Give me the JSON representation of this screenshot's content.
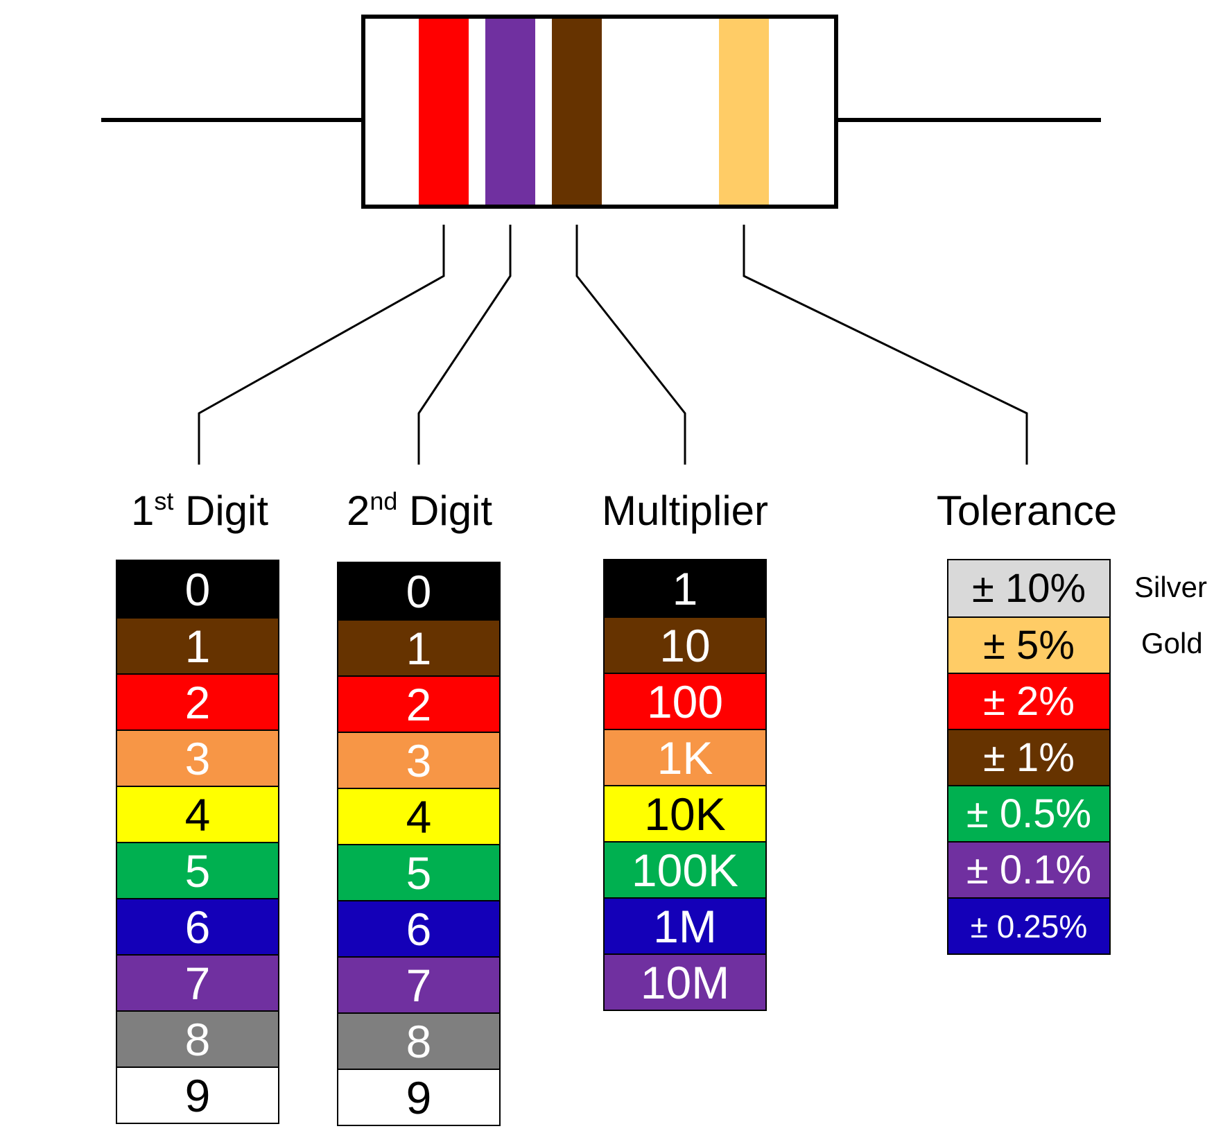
{
  "resistor": {
    "bands": [
      {
        "name": "first-digit-band",
        "color": "#FF0000"
      },
      {
        "name": "second-digit-band",
        "color": "#7030A0"
      },
      {
        "name": "multiplier-band",
        "color": "#663300"
      },
      {
        "name": "tolerance-band",
        "color": "#FFCC66"
      }
    ]
  },
  "columns": {
    "first_digit": {
      "title_main": "1",
      "title_sup": "st",
      "title_rest": " Digit",
      "rows": [
        {
          "label": "0",
          "bg": "#000000",
          "fg": "#FFFFFF"
        },
        {
          "label": "1",
          "bg": "#663300",
          "fg": "#FFFFFF"
        },
        {
          "label": "2",
          "bg": "#FF0000",
          "fg": "#FFFFFF"
        },
        {
          "label": "3",
          "bg": "#F79646",
          "fg": "#FFFFFF"
        },
        {
          "label": "4",
          "bg": "#FFFF00",
          "fg": "#000000"
        },
        {
          "label": "5",
          "bg": "#00B050",
          "fg": "#FFFFFF"
        },
        {
          "label": "6",
          "bg": "#1400B8",
          "fg": "#FFFFFF"
        },
        {
          "label": "7",
          "bg": "#7030A0",
          "fg": "#FFFFFF"
        },
        {
          "label": "8",
          "bg": "#7F7F7F",
          "fg": "#FFFFFF"
        },
        {
          "label": "9",
          "bg": "#FFFFFF",
          "fg": "#000000"
        }
      ]
    },
    "second_digit": {
      "title_main": "2",
      "title_sup": "nd",
      "title_rest": " Digit",
      "rows": [
        {
          "label": "0",
          "bg": "#000000",
          "fg": "#FFFFFF"
        },
        {
          "label": "1",
          "bg": "#663300",
          "fg": "#FFFFFF"
        },
        {
          "label": "2",
          "bg": "#FF0000",
          "fg": "#FFFFFF"
        },
        {
          "label": "3",
          "bg": "#F79646",
          "fg": "#FFFFFF"
        },
        {
          "label": "4",
          "bg": "#FFFF00",
          "fg": "#000000"
        },
        {
          "label": "5",
          "bg": "#00B050",
          "fg": "#FFFFFF"
        },
        {
          "label": "6",
          "bg": "#1400B8",
          "fg": "#FFFFFF"
        },
        {
          "label": "7",
          "bg": "#7030A0",
          "fg": "#FFFFFF"
        },
        {
          "label": "8",
          "bg": "#7F7F7F",
          "fg": "#FFFFFF"
        },
        {
          "label": "9",
          "bg": "#FFFFFF",
          "fg": "#000000"
        }
      ]
    },
    "multiplier": {
      "title": "Multiplier",
      "rows": [
        {
          "label": "1",
          "bg": "#000000",
          "fg": "#FFFFFF"
        },
        {
          "label": "10",
          "bg": "#663300",
          "fg": "#FFFFFF"
        },
        {
          "label": "100",
          "bg": "#FF0000",
          "fg": "#FFFFFF"
        },
        {
          "label": "1K",
          "bg": "#F79646",
          "fg": "#FFFFFF"
        },
        {
          "label": "10K",
          "bg": "#FFFF00",
          "fg": "#000000"
        },
        {
          "label": "100K",
          "bg": "#00B050",
          "fg": "#FFFFFF"
        },
        {
          "label": "1M",
          "bg": "#1400B8",
          "fg": "#FFFFFF"
        },
        {
          "label": "10M",
          "bg": "#7030A0",
          "fg": "#FFFFFF"
        }
      ]
    },
    "tolerance": {
      "title": "Tolerance",
      "rows": [
        {
          "label": "± 10%",
          "bg": "#D9D9D9",
          "fg": "#000000",
          "side": "Silver"
        },
        {
          "label": "± 5%",
          "bg": "#FFCC66",
          "fg": "#000000",
          "side": "Gold"
        },
        {
          "label": "± 2%",
          "bg": "#FF0000",
          "fg": "#FFFFFF"
        },
        {
          "label": "± 1%",
          "bg": "#663300",
          "fg": "#FFFFFF"
        },
        {
          "label": "± 0.5%",
          "bg": "#00B050",
          "fg": "#FFFFFF"
        },
        {
          "label": "± 0.1%",
          "bg": "#7030A0",
          "fg": "#FFFFFF"
        },
        {
          "label": "± 0.25%",
          "bg": "#1400B8",
          "fg": "#FFFFFF"
        }
      ]
    }
  }
}
